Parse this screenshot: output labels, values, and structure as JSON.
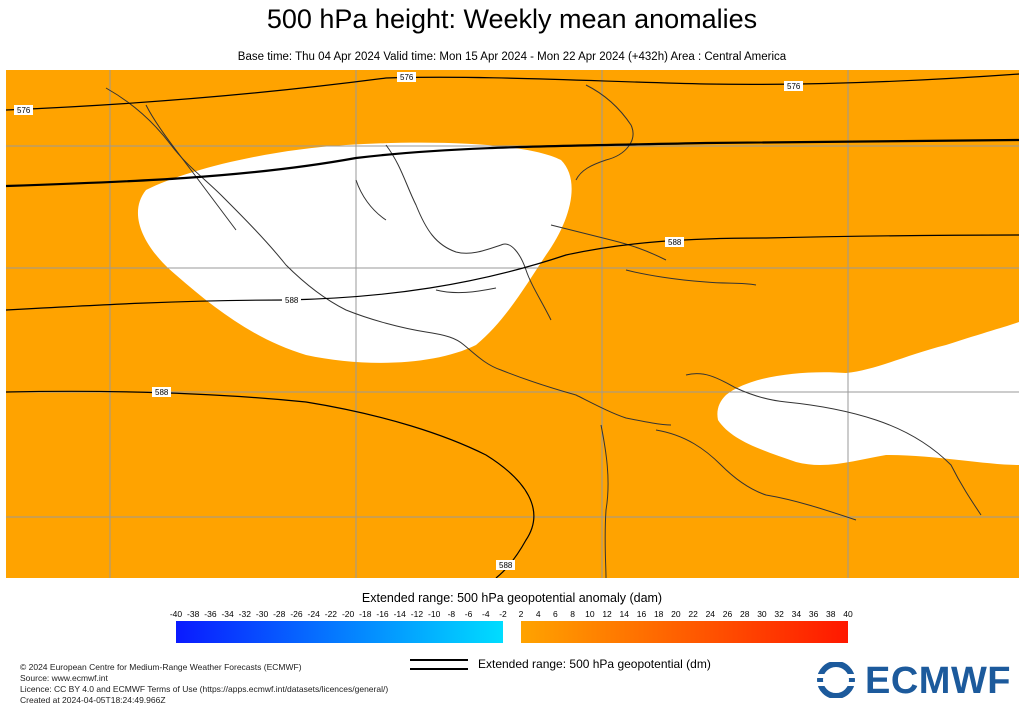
{
  "title": "500 hPa height: Weekly mean anomalies",
  "subtitle": "Base time: Thu 04 Apr 2024 Valid time: Mon 15 Apr 2024 - Mon 22 Apr 2024 (+432h) Area : Central America",
  "map": {
    "area": "Central America",
    "contour_labels": [
      "576",
      "576",
      "576",
      "588",
      "588",
      "588",
      "588"
    ],
    "colors": {
      "positive_anomaly": "#ffa300",
      "neutral": "#ffffff",
      "contour": "#000000",
      "coast": "#333333",
      "grid": "#aaaaaa"
    }
  },
  "legend": {
    "title": "Extended range: 500 hPa geopotential anomaly (dam)",
    "ticks": [
      "-40",
      "-38",
      "-36",
      "-34",
      "-32",
      "-30",
      "-28",
      "-26",
      "-24",
      "-22",
      "-20",
      "-18",
      "-16",
      "-14",
      "-12",
      "-10",
      "-8",
      "-6",
      "-4",
      "-2",
      "2",
      "4",
      "6",
      "8",
      "10",
      "12",
      "14",
      "16",
      "18",
      "20",
      "22",
      "24",
      "26",
      "28",
      "30",
      "32",
      "34",
      "36",
      "38",
      "40"
    ],
    "negative_colors": {
      "from": "#0a1aff",
      "to": "#00ddff"
    },
    "positive_colors": {
      "from": "#ffa300",
      "to": "#ff1800"
    },
    "contour_key_label": "Extended range: 500 hPa geopotential (dm)"
  },
  "credits": [
    "© 2024 European Centre for Medium-Range Weather Forecasts (ECMWF)",
    "Source: www.ecmwf.int",
    "Licence: CC BY 4.0 and ECMWF Terms of Use (https://apps.ecmwf.int/datasets/licences/general/)",
    "Created at 2024-04-05T18:24:49.966Z"
  ],
  "logo": {
    "text": "ECMWF",
    "color": "#1c5a9c"
  }
}
